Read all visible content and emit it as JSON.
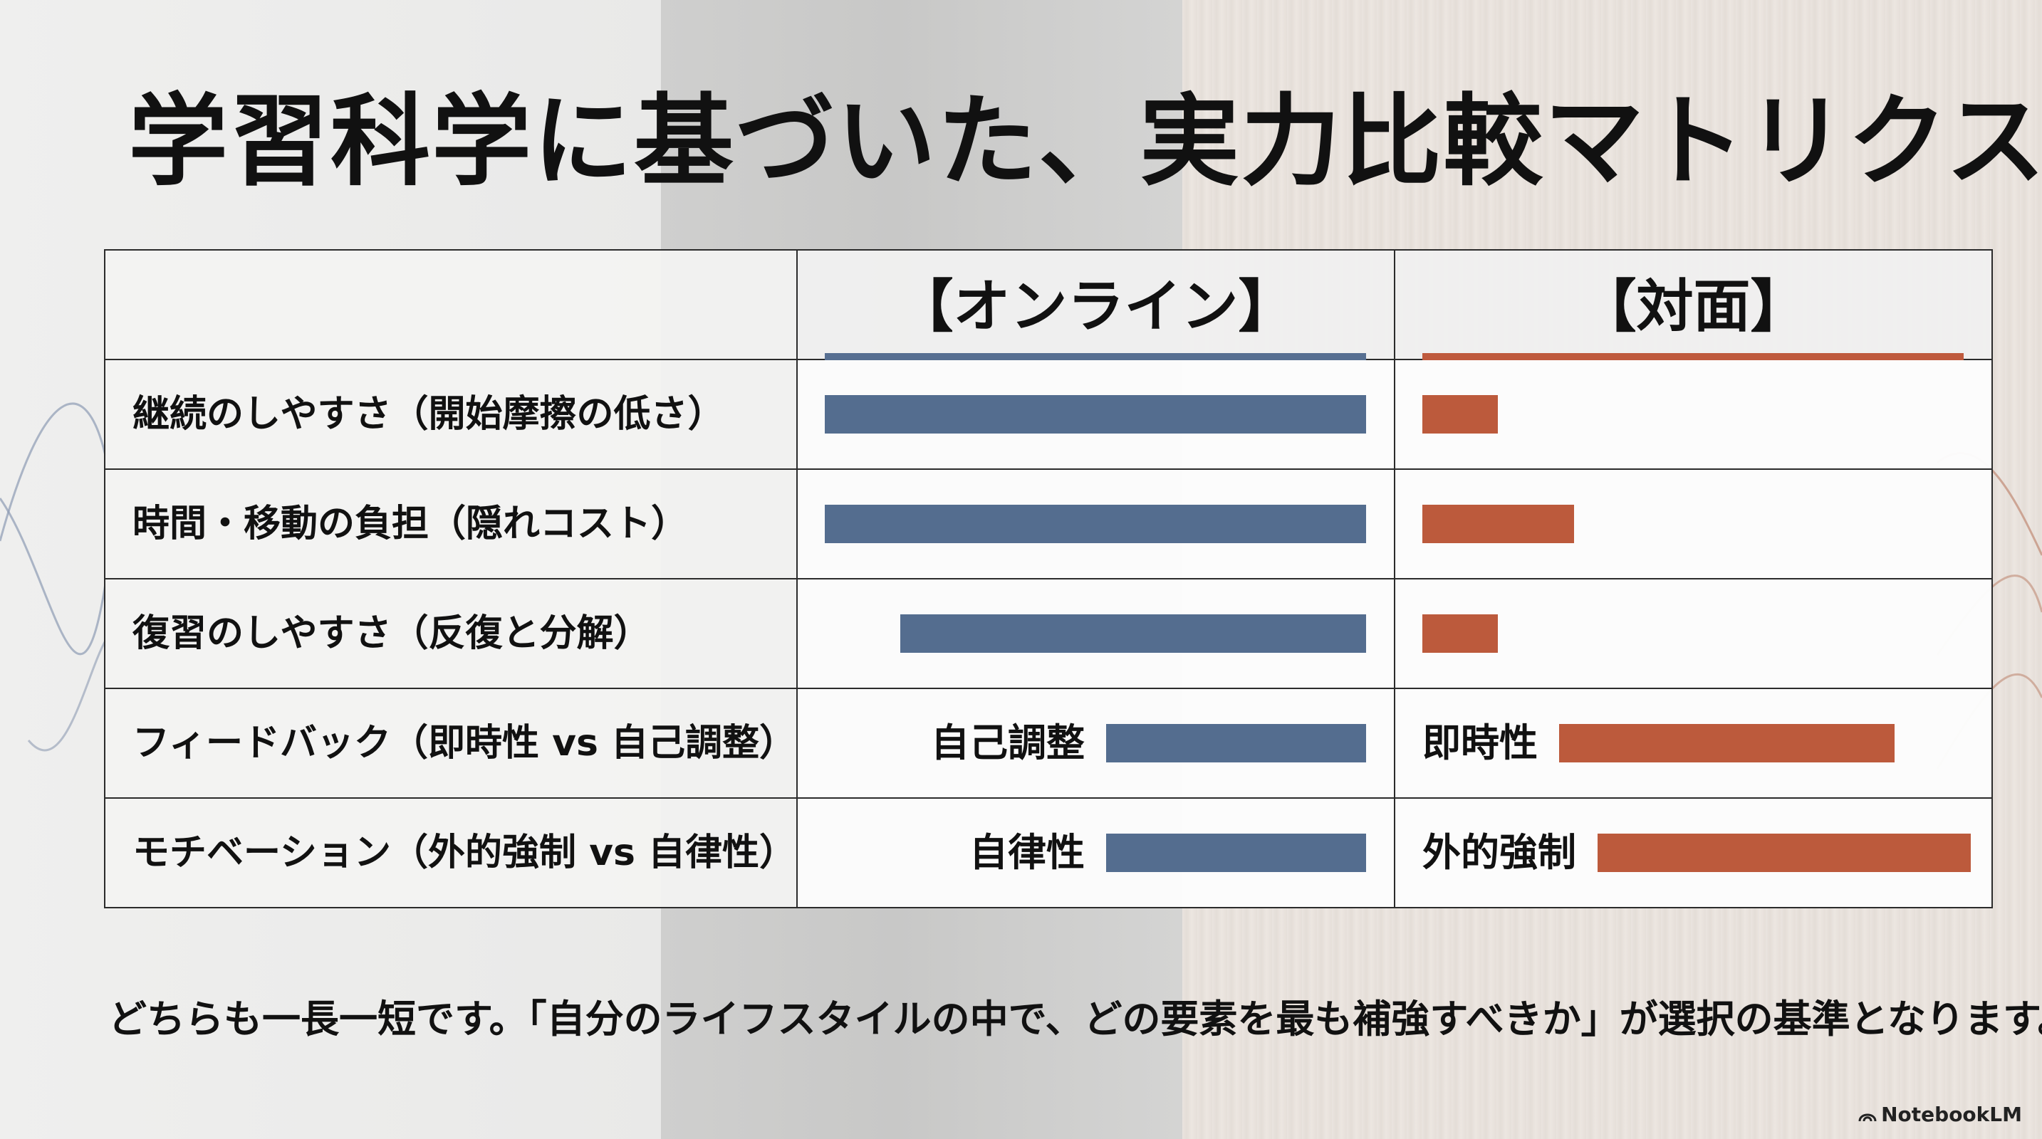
{
  "title": "学習科学に基づいた、実力比較マトリクス",
  "chart_data": {
    "type": "bar",
    "columns": [
      "【オンライン】",
      "【対面】"
    ],
    "categories": [
      "継続のしやすさ（開始摩擦の低さ）",
      "時間・移動の負担（隠れコスト）",
      "復習のしやすさ（反復と分解）",
      "フィードバック（即時性 vs 自己調整）",
      "モチベーション（外的強制 vs 自律性）"
    ],
    "series": [
      {
        "name": "【オンライン】",
        "color": "#546d8f",
        "values": [
          1.0,
          1.0,
          0.86,
          0.48,
          0.48
        ],
        "labels": [
          "",
          "",
          "",
          "自己調整",
          "自律性"
        ]
      },
      {
        "name": "【対面】",
        "color": "#bc5a3c",
        "values": [
          0.14,
          0.28,
          0.14,
          0.62,
          0.69
        ],
        "labels": [
          "",
          "",
          "",
          "即時性",
          "外的強制"
        ]
      }
    ],
    "ylim": [
      0,
      1
    ],
    "grid": false
  },
  "footer": "どちらも一長一短です。「自分のライフスタイルの中で、どの要素を最も補強すべきか」が選択の基準となります。",
  "brand": "NotebookLM",
  "icons": {
    "brand": "notebooklm-logo-icon"
  }
}
